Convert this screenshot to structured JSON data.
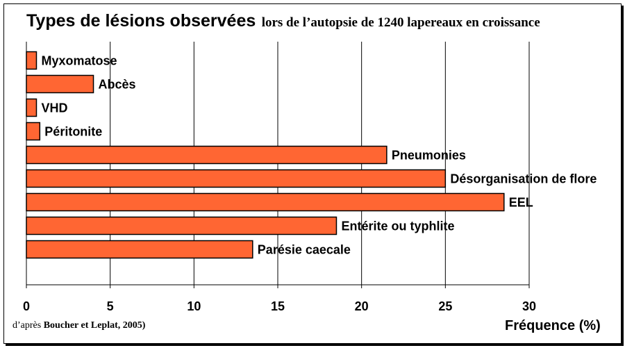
{
  "chart_data": {
    "type": "bar",
    "orientation": "horizontal",
    "title": "Types de lésions observées",
    "subtitle": "lors de l’autopsie de 1240 lapereaux en croissance",
    "xlabel": "Fréquence (%)",
    "ylabel": "",
    "xlim": [
      0,
      30
    ],
    "xticks": [
      "0",
      "5",
      "10",
      "15",
      "20",
      "25",
      "30"
    ],
    "grid": "vertical",
    "categories": [
      "Myxomatose",
      "Abcès",
      "VHD",
      "Péritonite",
      "Pneumonies",
      "Désorganisation de flore",
      "EEL",
      "Entérite ou typhlite",
      "Parésie caecale"
    ],
    "values": [
      0.6,
      4.0,
      0.6,
      0.8,
      21.5,
      25.0,
      28.5,
      18.5,
      13.5
    ],
    "bar_color": "#ff6633"
  },
  "source": {
    "prefix": "d’après",
    "authors": "Boucher et Leplat, 2005)"
  }
}
